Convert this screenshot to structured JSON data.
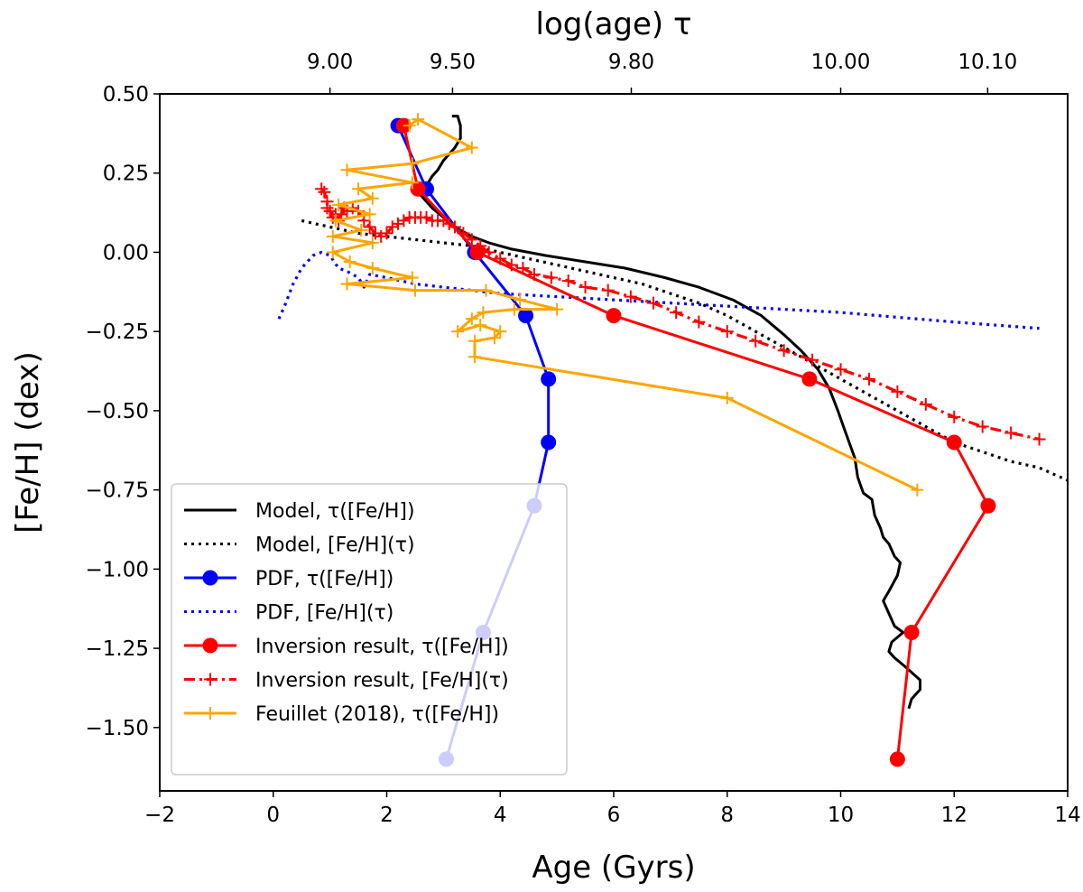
{
  "chart_data": {
    "type": "line",
    "xlabel": "Age (Gyrs)",
    "ylabel": "[Fe/H] (dex)",
    "top_xlabel": "log(age) τ",
    "xlim": [
      -2,
      14
    ],
    "ylim": [
      -1.7,
      0.5
    ],
    "x_ticks": [
      {
        "value": -2,
        "label": "−2"
      },
      {
        "value": 0,
        "label": "0"
      },
      {
        "value": 2,
        "label": "2"
      },
      {
        "value": 4,
        "label": "4"
      },
      {
        "value": 6,
        "label": "6"
      },
      {
        "value": 8,
        "label": "8"
      },
      {
        "value": 10,
        "label": "10"
      },
      {
        "value": 12,
        "label": "12"
      },
      {
        "value": 14,
        "label": "14"
      }
    ],
    "y_ticks": [
      {
        "value": 0.5,
        "label": "0.50"
      },
      {
        "value": 0.25,
        "label": "0.25"
      },
      {
        "value": 0.0,
        "label": "0.00"
      },
      {
        "value": -0.25,
        "label": "−0.25"
      },
      {
        "value": -0.5,
        "label": "−0.50"
      },
      {
        "value": -0.75,
        "label": "−0.75"
      },
      {
        "value": -1.0,
        "label": "−1.00"
      },
      {
        "value": -1.25,
        "label": "−1.25"
      },
      {
        "value": -1.5,
        "label": "−1.50"
      }
    ],
    "top_ticks": [
      {
        "value": 1.0,
        "label": "9.00"
      },
      {
        "value": 3.16,
        "label": "9.50"
      },
      {
        "value": 6.31,
        "label": "9.80"
      },
      {
        "value": 10.0,
        "label": "10.00"
      },
      {
        "value": 12.59,
        "label": "10.10"
      }
    ],
    "legend_position": "lower-left",
    "series": [
      {
        "name": "Model, τ([Fe/H])",
        "color": "#000000",
        "style": "solid",
        "marker": "none",
        "points": [
          [
            3.15,
            0.43
          ],
          [
            3.25,
            0.43
          ],
          [
            3.3,
            0.4
          ],
          [
            3.3,
            0.36
          ],
          [
            3.2,
            0.33
          ],
          [
            3.0,
            0.29
          ],
          [
            2.9,
            0.26
          ],
          [
            2.8,
            0.24
          ],
          [
            2.7,
            0.21
          ],
          [
            2.6,
            0.18
          ],
          [
            2.8,
            0.14
          ],
          [
            3.0,
            0.11
          ],
          [
            3.2,
            0.08
          ],
          [
            3.5,
            0.05
          ],
          [
            3.8,
            0.03
          ],
          [
            4.2,
            0.01
          ],
          [
            4.8,
            -0.01
          ],
          [
            5.5,
            -0.03
          ],
          [
            6.2,
            -0.05
          ],
          [
            6.9,
            -0.08
          ],
          [
            7.5,
            -0.11
          ],
          [
            8.1,
            -0.15
          ],
          [
            8.6,
            -0.2
          ],
          [
            9.0,
            -0.26
          ],
          [
            9.3,
            -0.31
          ],
          [
            9.6,
            -0.37
          ],
          [
            9.8,
            -0.43
          ],
          [
            9.95,
            -0.5
          ],
          [
            10.05,
            -0.55
          ],
          [
            10.15,
            -0.6
          ],
          [
            10.25,
            -0.65
          ],
          [
            10.3,
            -0.71
          ],
          [
            10.4,
            -0.76
          ],
          [
            10.55,
            -0.78
          ],
          [
            10.6,
            -0.83
          ],
          [
            10.7,
            -0.87
          ],
          [
            10.75,
            -0.9
          ],
          [
            10.85,
            -0.92
          ],
          [
            10.95,
            -0.96
          ],
          [
            11.05,
            -0.98
          ],
          [
            11.0,
            -1.02
          ],
          [
            10.85,
            -1.07
          ],
          [
            10.75,
            -1.1
          ],
          [
            10.85,
            -1.14
          ],
          [
            10.95,
            -1.18
          ],
          [
            11.1,
            -1.2
          ],
          [
            10.9,
            -1.23
          ],
          [
            10.85,
            -1.26
          ],
          [
            10.95,
            -1.28
          ],
          [
            11.15,
            -1.31
          ],
          [
            11.4,
            -1.35
          ],
          [
            11.4,
            -1.38
          ],
          [
            11.25,
            -1.41
          ],
          [
            11.2,
            -1.44
          ]
        ]
      },
      {
        "name": "Model, [Fe/H](τ)",
        "color": "#000000",
        "style": "dotted",
        "marker": "none",
        "points": [
          [
            0.5,
            0.1
          ],
          [
            1.0,
            0.08
          ],
          [
            1.5,
            0.06
          ],
          [
            2.0,
            0.05
          ],
          [
            2.5,
            0.04
          ],
          [
            3.0,
            0.03
          ],
          [
            3.5,
            0.02
          ],
          [
            4.0,
            0.0
          ],
          [
            4.5,
            -0.02
          ],
          [
            5.0,
            -0.04
          ],
          [
            5.5,
            -0.06
          ],
          [
            6.0,
            -0.08
          ],
          [
            6.5,
            -0.1
          ],
          [
            7.0,
            -0.13
          ],
          [
            7.5,
            -0.16
          ],
          [
            8.0,
            -0.2
          ],
          [
            8.5,
            -0.25
          ],
          [
            9.0,
            -0.3
          ],
          [
            9.5,
            -0.35
          ],
          [
            10.0,
            -0.4
          ],
          [
            10.5,
            -0.45
          ],
          [
            11.0,
            -0.5
          ],
          [
            11.5,
            -0.55
          ],
          [
            12.0,
            -0.6
          ],
          [
            12.5,
            -0.63
          ],
          [
            13.0,
            -0.66
          ],
          [
            13.5,
            -0.68
          ],
          [
            14.0,
            -0.72
          ]
        ]
      },
      {
        "name": "PDF, τ([Fe/H])",
        "color": "#0000ff",
        "style": "solid",
        "marker": "circle",
        "points": [
          [
            3.05,
            -1.6
          ],
          [
            3.7,
            -1.2
          ],
          [
            4.6,
            -0.8
          ],
          [
            4.85,
            -0.6
          ],
          [
            4.85,
            -0.4
          ],
          [
            4.45,
            -0.2
          ],
          [
            3.55,
            0.0
          ],
          [
            2.7,
            0.2
          ],
          [
            2.2,
            0.4
          ]
        ]
      },
      {
        "name": "PDF, [Fe/H](τ)",
        "color": "#0000ff",
        "style": "dotted",
        "marker": "none",
        "points": [
          [
            0.1,
            -0.21
          ],
          [
            0.2,
            -0.17
          ],
          [
            0.35,
            -0.1
          ],
          [
            0.5,
            -0.05
          ],
          [
            0.7,
            -0.01
          ],
          [
            0.85,
            0.0
          ],
          [
            1.0,
            -0.01
          ],
          [
            1.15,
            -0.05
          ],
          [
            1.3,
            -0.06
          ],
          [
            1.5,
            -0.08
          ],
          [
            1.6,
            -0.11
          ],
          [
            1.7,
            -0.07
          ],
          [
            2.0,
            -0.08
          ],
          [
            2.5,
            -0.1
          ],
          [
            3.0,
            -0.11
          ],
          [
            4.0,
            -0.13
          ],
          [
            5.0,
            -0.14
          ],
          [
            6.0,
            -0.15
          ],
          [
            8.0,
            -0.17
          ],
          [
            10.0,
            -0.19
          ],
          [
            12.0,
            -0.22
          ],
          [
            13.5,
            -0.24
          ]
        ]
      },
      {
        "name": "Inversion result, τ([Fe/H])",
        "color": "#ff0000",
        "style": "solid",
        "marker": "circle",
        "points": [
          [
            11.0,
            -1.6
          ],
          [
            11.25,
            -1.2
          ],
          [
            12.6,
            -0.8
          ],
          [
            12.0,
            -0.6
          ],
          [
            9.45,
            -0.4
          ],
          [
            6.0,
            -0.2
          ],
          [
            3.6,
            0.0
          ],
          [
            2.55,
            0.2
          ],
          [
            2.3,
            0.4
          ]
        ]
      },
      {
        "name": "Inversion result, [Fe/H](τ)",
        "color": "#ff0000",
        "style": "dashdot",
        "marker": "plus",
        "points": [
          [
            0.85,
            0.2
          ],
          [
            0.9,
            0.19
          ],
          [
            0.95,
            0.16
          ],
          [
            0.95,
            0.14
          ],
          [
            1.0,
            0.13
          ],
          [
            1.05,
            0.11
          ],
          [
            1.1,
            0.12
          ],
          [
            1.15,
            0.1
          ],
          [
            1.2,
            0.12
          ],
          [
            1.25,
            0.14
          ],
          [
            1.3,
            0.13
          ],
          [
            1.4,
            0.14
          ],
          [
            1.5,
            0.13
          ],
          [
            1.6,
            0.1
          ],
          [
            1.7,
            0.08
          ],
          [
            1.8,
            0.06
          ],
          [
            1.9,
            0.05
          ],
          [
            2.0,
            0.06
          ],
          [
            2.1,
            0.08
          ],
          [
            2.2,
            0.09
          ],
          [
            2.3,
            0.1
          ],
          [
            2.4,
            0.11
          ],
          [
            2.5,
            0.11
          ],
          [
            2.6,
            0.11
          ],
          [
            2.7,
            0.11
          ],
          [
            2.8,
            0.1
          ],
          [
            2.9,
            0.1
          ],
          [
            3.0,
            0.1
          ],
          [
            3.1,
            0.09
          ],
          [
            3.2,
            0.08
          ],
          [
            3.35,
            0.06
          ],
          [
            3.5,
            0.04
          ],
          [
            3.65,
            0.02
          ],
          [
            3.8,
            0.0
          ],
          [
            4.0,
            -0.02
          ],
          [
            4.2,
            -0.04
          ],
          [
            4.4,
            -0.05
          ],
          [
            4.6,
            -0.07
          ],
          [
            4.9,
            -0.08
          ],
          [
            5.2,
            -0.09
          ],
          [
            5.5,
            -0.11
          ],
          [
            5.9,
            -0.12
          ],
          [
            6.3,
            -0.14
          ],
          [
            6.7,
            -0.16
          ],
          [
            7.1,
            -0.19
          ],
          [
            7.5,
            -0.22
          ],
          [
            8.0,
            -0.25
          ],
          [
            8.5,
            -0.28
          ],
          [
            9.0,
            -0.31
          ],
          [
            9.5,
            -0.34
          ],
          [
            10.0,
            -0.37
          ],
          [
            10.5,
            -0.4
          ],
          [
            11.0,
            -0.44
          ],
          [
            11.5,
            -0.48
          ],
          [
            12.0,
            -0.52
          ],
          [
            12.5,
            -0.55
          ],
          [
            13.0,
            -0.57
          ],
          [
            13.5,
            -0.59
          ]
        ]
      },
      {
        "name": "Feuillet (2018), τ([Fe/H])",
        "color": "#ffa500",
        "style": "solid",
        "marker": "plus",
        "points": [
          [
            11.35,
            -0.75
          ],
          [
            8.0,
            -0.46
          ],
          [
            3.55,
            -0.33
          ],
          [
            3.55,
            -0.28
          ],
          [
            3.9,
            -0.27
          ],
          [
            4.0,
            -0.25
          ],
          [
            3.65,
            -0.23
          ],
          [
            3.25,
            -0.25
          ],
          [
            3.5,
            -0.21
          ],
          [
            3.7,
            -0.19
          ],
          [
            4.25,
            -0.18
          ],
          [
            5.0,
            -0.18
          ],
          [
            4.35,
            -0.15
          ],
          [
            3.75,
            -0.12
          ],
          [
            2.5,
            -0.12
          ],
          [
            1.3,
            -0.1
          ],
          [
            2.45,
            -0.08
          ],
          [
            1.75,
            -0.05
          ],
          [
            1.35,
            -0.03
          ],
          [
            1.05,
            0.0
          ],
          [
            1.75,
            0.03
          ],
          [
            1.05,
            0.05
          ],
          [
            1.55,
            0.07
          ],
          [
            1.1,
            0.1
          ],
          [
            1.7,
            0.12
          ],
          [
            1.15,
            0.15
          ],
          [
            1.75,
            0.17
          ],
          [
            1.5,
            0.2
          ],
          [
            2.45,
            0.22
          ],
          [
            1.3,
            0.26
          ],
          [
            2.45,
            0.28
          ],
          [
            3.5,
            0.33
          ],
          [
            2.55,
            0.42
          ],
          [
            2.4,
            0.4
          ]
        ]
      }
    ]
  }
}
